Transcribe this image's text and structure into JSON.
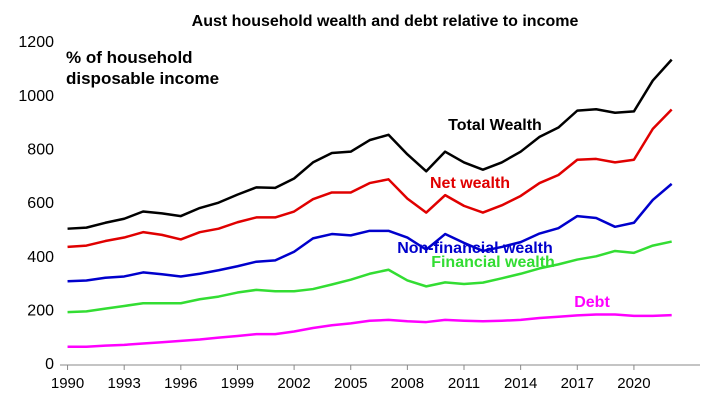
{
  "chart_data": {
    "type": "line",
    "title": "Aust household wealth and debt relative to income",
    "ylabel": "% of household disposable income",
    "x": [
      1990,
      1991,
      1992,
      1993,
      1994,
      1995,
      1996,
      1997,
      1998,
      1999,
      2000,
      2001,
      2002,
      2003,
      2004,
      2005,
      2006,
      2007,
      2008,
      2009,
      2010,
      2011,
      2012,
      2013,
      2014,
      2015,
      2016,
      2017,
      2018,
      2019,
      2020,
      2021,
      2022
    ],
    "series": [
      {
        "name": "Total Wealth",
        "color": "#000000",
        "values": [
          508,
          512,
          530,
          545,
          572,
          565,
          555,
          585,
          605,
          635,
          662,
          660,
          695,
          755,
          790,
          795,
          838,
          858,
          785,
          722,
          795,
          755,
          728,
          755,
          795,
          850,
          885,
          948,
          953,
          940,
          945,
          1060,
          1138
        ]
      },
      {
        "name": "Net wealth",
        "color": "#e00000",
        "values": [
          440,
          445,
          462,
          475,
          495,
          485,
          468,
          495,
          508,
          532,
          550,
          550,
          572,
          618,
          643,
          643,
          678,
          692,
          620,
          568,
          633,
          593,
          568,
          595,
          630,
          678,
          708,
          765,
          768,
          755,
          765,
          880,
          952
        ]
      },
      {
        "name": "Non-financial wealth",
        "color": "#0000cc",
        "values": [
          312,
          315,
          325,
          330,
          345,
          338,
          330,
          340,
          353,
          368,
          385,
          390,
          422,
          472,
          488,
          483,
          500,
          500,
          475,
          430,
          488,
          455,
          425,
          440,
          458,
          490,
          510,
          555,
          548,
          515,
          530,
          615,
          675
        ]
      },
      {
        "name": "Financial wealth",
        "color": "#33dd33",
        "values": [
          197,
          200,
          210,
          220,
          230,
          230,
          230,
          245,
          255,
          270,
          280,
          275,
          275,
          283,
          300,
          318,
          340,
          355,
          315,
          293,
          308,
          302,
          307,
          323,
          340,
          360,
          375,
          393,
          405,
          425,
          418,
          445,
          460
        ]
      },
      {
        "name": "Debt",
        "color": "#ff00ff",
        "values": [
          68,
          68,
          72,
          75,
          80,
          85,
          90,
          95,
          102,
          108,
          115,
          115,
          125,
          138,
          148,
          155,
          165,
          168,
          163,
          160,
          168,
          165,
          163,
          165,
          168,
          175,
          180,
          185,
          188,
          188,
          183,
          183,
          186
        ]
      }
    ],
    "xlim": [
      1989.6,
      2023.5
    ],
    "xticks": [
      1990,
      1993,
      1996,
      1999,
      2002,
      2005,
      2008,
      2011,
      2014,
      2017,
      2020
    ],
    "ylim": [
      0,
      1200
    ],
    "yticks": [
      0,
      200,
      400,
      600,
      800,
      1000,
      1200
    ]
  }
}
